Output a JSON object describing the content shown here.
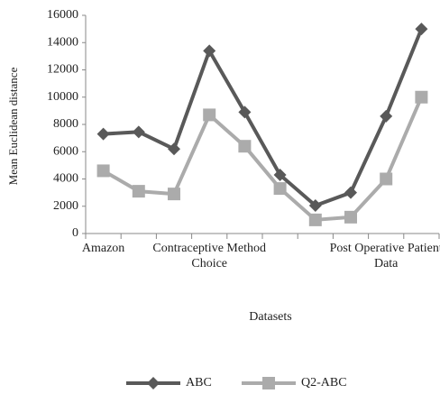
{
  "chart_data": {
    "type": "line",
    "x_label": "Datasets",
    "y_label": "Mean Euclidean distance",
    "categories": [
      "Amazon",
      null,
      null,
      "Contraceptive Method Choice",
      null,
      null,
      null,
      null,
      "Post Operative Patient Data",
      null
    ],
    "series": [
      {
        "name": "ABC",
        "color": "#595959",
        "marker": "diamond",
        "values": [
          7300,
          7450,
          6200,
          13400,
          8900,
          4300,
          2050,
          3000,
          8600,
          15000
        ]
      },
      {
        "name": "Q2-ABC",
        "color": "#ababab",
        "marker": "square",
        "values": [
          4600,
          3100,
          2900,
          8700,
          6400,
          3300,
          1000,
          1200,
          4000,
          10000
        ]
      }
    ],
    "ylim": [
      0,
      16000
    ],
    "yticks": [
      0,
      2000,
      4000,
      6000,
      8000,
      10000,
      12000,
      14000,
      16000
    ],
    "grid": false,
    "legend": "bottom"
  }
}
